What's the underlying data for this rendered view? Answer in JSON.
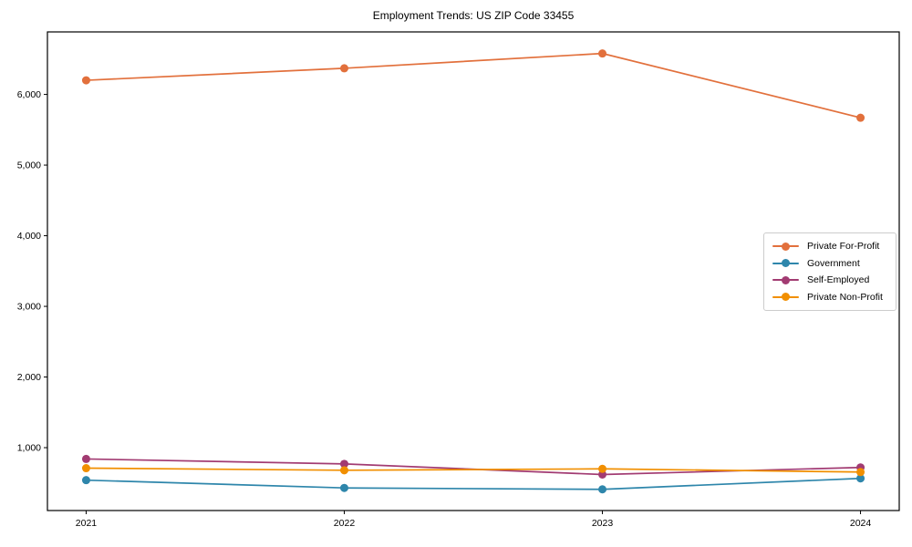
{
  "chart_data": {
    "type": "line",
    "title": "Employment Trends: US ZIP Code 33455",
    "xlabel": "",
    "ylabel": "",
    "x": [
      2021,
      2022,
      2023,
      2024
    ],
    "series": [
      {
        "name": "Private For-Profit",
        "color": "#E2703C",
        "values": [
          6200,
          6370,
          6580,
          5670
        ]
      },
      {
        "name": "Government",
        "color": "#2E86AB",
        "values": [
          540,
          430,
          410,
          565
        ]
      },
      {
        "name": "Self-Employed",
        "color": "#A23B72",
        "values": [
          840,
          770,
          620,
          720
        ]
      },
      {
        "name": "Private Non-Profit",
        "color": "#F18F01",
        "values": [
          710,
          680,
          700,
          655
        ]
      }
    ],
    "xlim": [
      2020.85,
      2024.15
    ],
    "ylim": [
      110,
      6885
    ],
    "xticks": {
      "values": [
        2021,
        2022,
        2023,
        2024
      ],
      "labels": [
        "2021",
        "2022",
        "2023",
        "2024"
      ]
    },
    "yticks": {
      "values": [
        1000,
        2000,
        3000,
        4000,
        5000,
        6000
      ],
      "labels": [
        "1,000",
        "2,000",
        "3,000",
        "4,000",
        "5,000",
        "6,000"
      ]
    },
    "grid": false,
    "legend_position": "center-right",
    "marker": "circle",
    "spine_color": "#000000"
  }
}
